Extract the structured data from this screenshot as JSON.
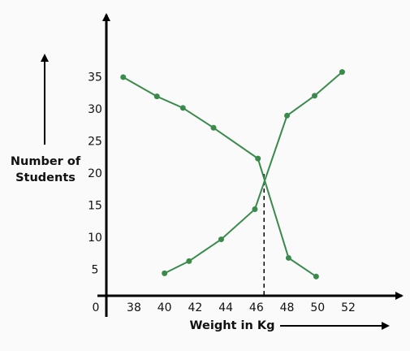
{
  "chart_data": {
    "type": "line",
    "ylabel": [
      "Number of",
      "Students"
    ],
    "xlabel": "Weight in Kg",
    "origin_label": "0",
    "xlim": [
      36.2,
      55.5
    ],
    "ylim": [
      1,
      44.6
    ],
    "xticks": [
      38,
      40,
      42,
      44,
      46,
      48,
      50,
      52
    ],
    "yticks": [
      5,
      10,
      15,
      20,
      25,
      30,
      35
    ],
    "color": "#3a8a4c",
    "series": [
      {
        "x": [
          37.3,
          39.5,
          41.2,
          43.2,
          46.1,
          48.1,
          49.9
        ],
        "values": [
          35.1,
          32.1,
          30.3,
          27.2,
          22.4,
          6.9,
          4.0
        ]
      },
      {
        "x": [
          40,
          41.6,
          43.7,
          45.9,
          48,
          49.8,
          51.6
        ],
        "values": [
          4.5,
          6.4,
          9.8,
          14.5,
          29.1,
          32.2,
          35.9
        ]
      }
    ],
    "dropline": {
      "x": 46.5,
      "y": 20
    }
  }
}
